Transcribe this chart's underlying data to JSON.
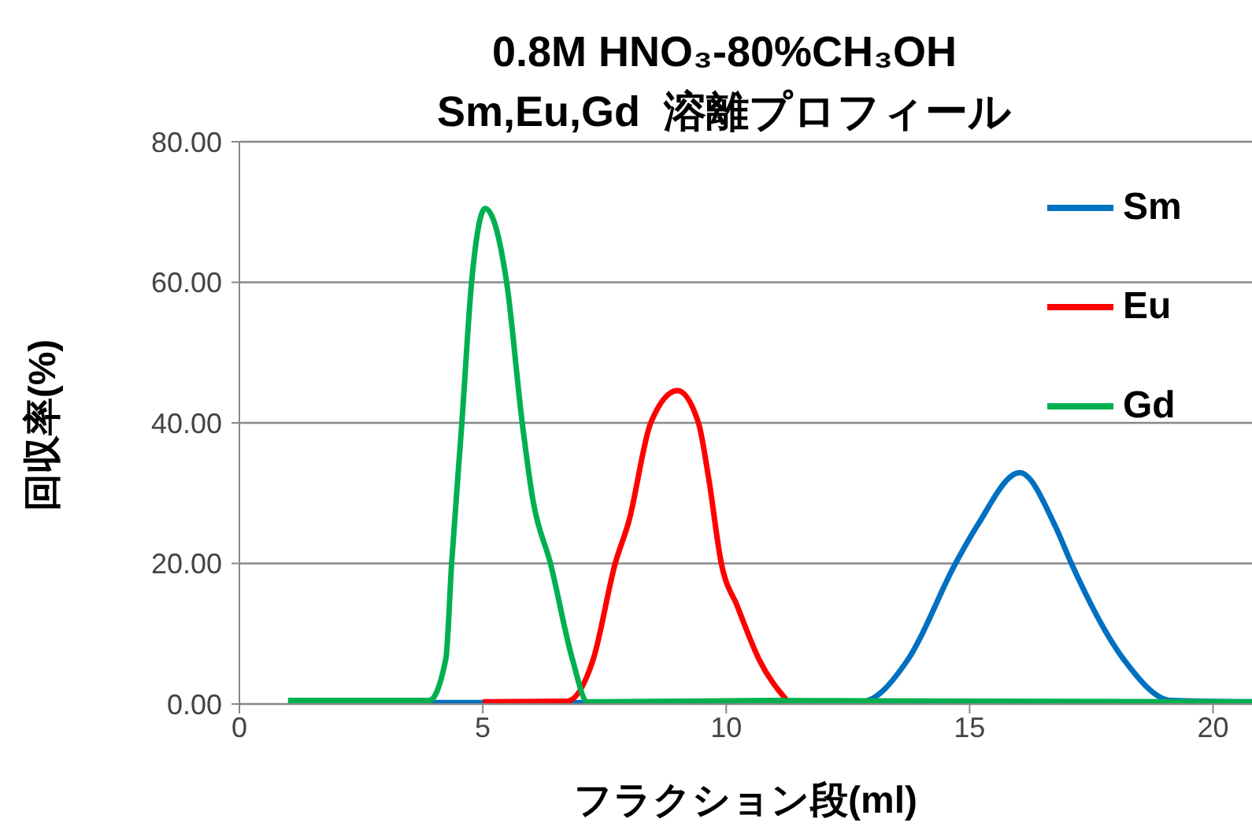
{
  "chart_data": {
    "type": "line",
    "title": "0.8M HNO₃-80%CH₃OH",
    "subtitle": "Sm,Eu,Gd  溶離プロフィール",
    "xlabel": "フラクション段(ml)",
    "ylabel": "回収率(%)",
    "xlim": [
      0,
      20.8
    ],
    "xticks": [
      0,
      5,
      10,
      15,
      20
    ],
    "ylim": [
      0,
      80
    ],
    "yticks": [
      {
        "value": 0,
        "label": "0.00"
      },
      {
        "value": 20,
        "label": "20.00"
      },
      {
        "value": 40,
        "label": "40.00"
      },
      {
        "value": 60,
        "label": "60.00"
      },
      {
        "value": 80,
        "label": "80.00"
      }
    ],
    "grid": "y",
    "legend": "top right",
    "marker": "none",
    "line_style": "solid",
    "series": [
      {
        "name": "Sm",
        "color": "#0070c0",
        "x": [
          1,
          10,
          12.77,
          13.74,
          14.71,
          15.15,
          16.03,
          16.76,
          17.09,
          18.16,
          19.14,
          20.8
        ],
        "values": [
          0.2,
          0.2,
          0.3,
          6.4,
          20,
          25.3,
          32.9,
          25.3,
          20,
          6.4,
          0.5,
          0.3
        ]
      },
      {
        "name": "Eu",
        "color": "#ff0000",
        "x": [
          5,
          6.73,
          7.27,
          7.72,
          8.0,
          8.45,
          9.0,
          9.43,
          9.64,
          9.9,
          10.23,
          10.67,
          11.26
        ],
        "values": [
          0.3,
          0.4,
          6.4,
          20,
          26,
          40,
          44.6,
          40,
          32.1,
          20,
          13.9,
          6.4,
          0.4
        ]
      },
      {
        "name": "Gd",
        "color": "#00b050",
        "x": [
          1,
          3.9,
          4.24,
          4.36,
          4.57,
          4.77,
          5.05,
          5.49,
          5.81,
          6.03,
          6.39,
          6.84,
          7.15,
          11,
          20.8
        ],
        "values": [
          0.5,
          0.5,
          6.4,
          20,
          40,
          60,
          70.5,
          60,
          40,
          29,
          20,
          6.4,
          0.3,
          0.5,
          0.3
        ]
      }
    ]
  }
}
